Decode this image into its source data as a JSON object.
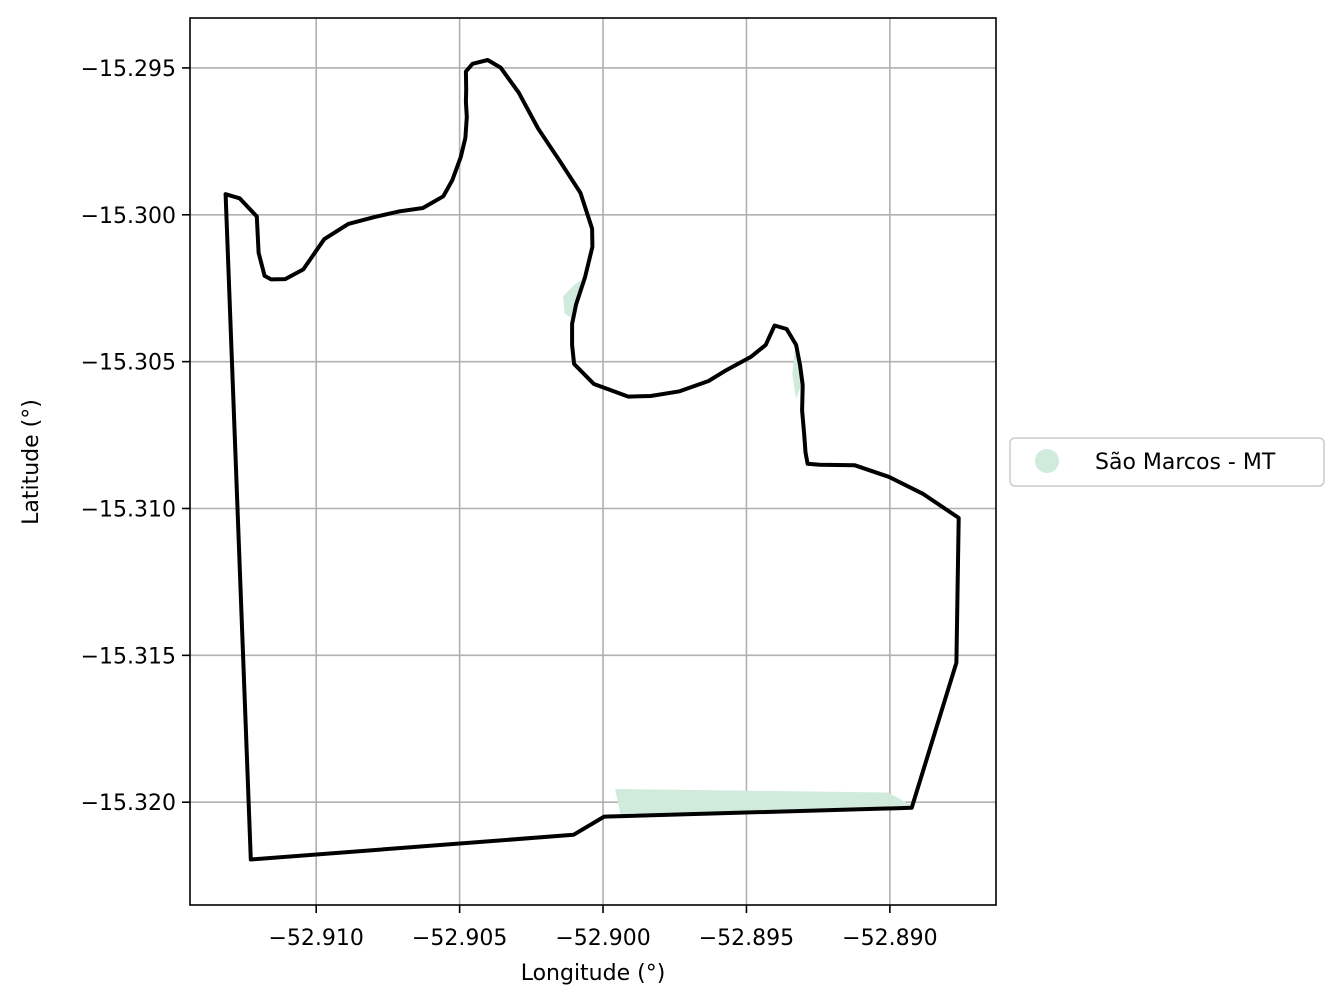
{
  "chart_data": {
    "type": "map",
    "xlabel": "Longitude (°)",
    "ylabel": "Latitude (°)",
    "xlim": [
      -52.9144,
      -52.8863
    ],
    "ylim": [
      -15.3235,
      -15.2933
    ],
    "xticks": [
      -52.91,
      -52.905,
      -52.9,
      -52.895,
      -52.89
    ],
    "yticks": [
      -15.295,
      -15.3,
      -15.305,
      -15.31,
      -15.315,
      -15.32
    ],
    "xtick_labels": [
      "−52.910",
      "−52.905",
      "−52.900",
      "−52.895",
      "−52.890"
    ],
    "ytick_labels": [
      "−15.295",
      "−15.300",
      "−15.305",
      "−15.310",
      "−15.315",
      "−15.320"
    ],
    "grid": true,
    "legend_position": "right",
    "legend": [
      {
        "label": "São Marcos - MT",
        "color": "#d0ebdc"
      }
    ],
    "colors": {
      "boundary": "#000000",
      "fill": "#d0ebdc",
      "grid": "#b0b0b0"
    },
    "boundary": [
      [
        -52.91316,
        -15.2993
      ],
      [
        -52.91267,
        -15.29944
      ],
      [
        -52.91207,
        -15.30006
      ],
      [
        -52.91201,
        -15.30129
      ],
      [
        -52.9118,
        -15.30208
      ],
      [
        -52.91157,
        -15.3022
      ],
      [
        -52.91108,
        -15.30219
      ],
      [
        -52.91045,
        -15.30186
      ],
      [
        -52.90972,
        -15.30083
      ],
      [
        -52.90888,
        -15.30031
      ],
      [
        -52.90797,
        -15.30008
      ],
      [
        -52.90709,
        -15.29988
      ],
      [
        -52.90628,
        -15.29977
      ],
      [
        -52.90557,
        -15.29937
      ],
      [
        -52.90526,
        -15.29883
      ],
      [
        -52.90496,
        -15.29803
      ],
      [
        -52.9048,
        -15.29738
      ],
      [
        -52.90475,
        -15.29667
      ],
      [
        -52.90478,
        -15.29615
      ],
      [
        -52.90477,
        -15.29573
      ],
      [
        -52.90478,
        -15.29512
      ],
      [
        -52.90455,
        -15.29486
      ],
      [
        -52.90402,
        -15.29473
      ],
      [
        -52.90357,
        -15.29499
      ],
      [
        -52.90294,
        -15.29584
      ],
      [
        -52.90226,
        -15.29707
      ],
      [
        -52.9015,
        -15.29818
      ],
      [
        -52.90079,
        -15.29925
      ],
      [
        -52.90038,
        -15.30047
      ],
      [
        -52.90037,
        -15.30109
      ],
      [
        -52.90063,
        -15.30213
      ],
      [
        -52.90094,
        -15.30305
      ],
      [
        -52.90108,
        -15.30371
      ],
      [
        -52.90108,
        -15.30444
      ],
      [
        -52.90101,
        -15.30508
      ],
      [
        -52.90032,
        -15.30576
      ],
      [
        -52.89912,
        -15.30619
      ],
      [
        -52.89834,
        -15.30617
      ],
      [
        -52.89733,
        -15.30601
      ],
      [
        -52.89632,
        -15.30566
      ],
      [
        -52.89577,
        -15.30533
      ],
      [
        -52.89525,
        -15.30505
      ],
      [
        -52.89483,
        -15.30483
      ],
      [
        -52.89433,
        -15.30443
      ],
      [
        -52.89402,
        -15.30377
      ],
      [
        -52.8936,
        -15.30389
      ],
      [
        -52.89327,
        -15.30443
      ],
      [
        -52.89313,
        -15.30513
      ],
      [
        -52.89304,
        -15.3058
      ],
      [
        -52.89306,
        -15.30666
      ],
      [
        -52.89299,
        -15.30744
      ],
      [
        -52.89294,
        -15.30809
      ],
      [
        -52.89287,
        -15.30848
      ],
      [
        -52.89245,
        -15.30851
      ],
      [
        -52.89122,
        -15.30853
      ],
      [
        -52.89004,
        -15.30892
      ],
      [
        -52.88883,
        -15.30951
      ],
      [
        -52.8876,
        -15.31032
      ],
      [
        -52.88768,
        -15.31525
      ],
      [
        -52.88924,
        -15.32019
      ],
      [
        -52.89996,
        -15.32049
      ],
      [
        -52.90103,
        -15.32111
      ],
      [
        -52.91228,
        -15.32195
      ],
      [
        -52.91316,
        -15.2993
      ]
    ],
    "filled_regions": [
      [
        [
          -52.89958,
          -15.31955
        ],
        [
          -52.89006,
          -15.31967
        ],
        [
          -52.88921,
          -15.32013
        ],
        [
          -52.89939,
          -15.32042
        ]
      ],
      [
        [
          -52.90139,
          -15.30278
        ],
        [
          -52.90101,
          -15.30239
        ],
        [
          -52.90076,
          -15.30222
        ],
        [
          -52.90104,
          -15.30355
        ],
        [
          -52.90134,
          -15.30337
        ]
      ],
      [
        [
          -52.89332,
          -15.30463
        ],
        [
          -52.89309,
          -15.3051
        ],
        [
          -52.89302,
          -15.3056
        ],
        [
          -52.89327,
          -15.30627
        ],
        [
          -52.8934,
          -15.30543
        ]
      ]
    ]
  }
}
